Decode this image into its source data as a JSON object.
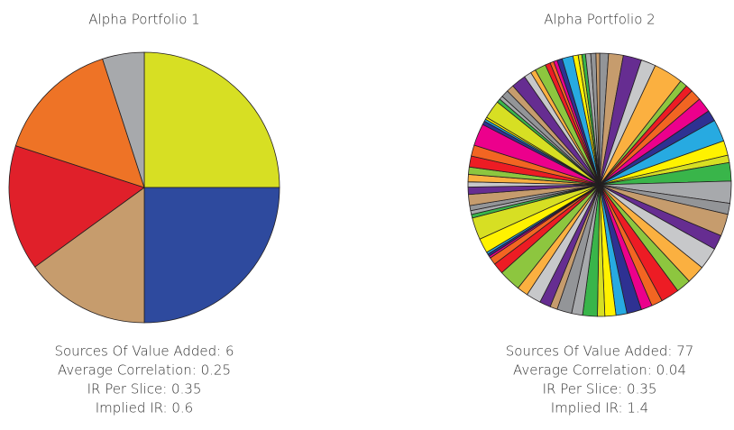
{
  "chart_data": [
    {
      "type": "pie",
      "title": "Alpha Portfolio 1",
      "values": [
        25,
        25,
        15,
        15,
        15,
        5
      ],
      "colors": [
        "#d7df23",
        "#2e4a9e",
        "#c69c6d",
        "#e0202a",
        "#ee7326",
        "#a7a9ac"
      ],
      "notes": [
        "Sources Of Value Added: 6",
        "Average Correlation: 0.25",
        "IR Per Slice: 0.35",
        "Implied IR: 0.6"
      ]
    },
    {
      "type": "pie",
      "title": "Alpha Portfolio 2",
      "values": [
        1.2,
        2,
        2.5,
        2,
        4,
        1,
        1,
        1.5,
        2,
        1.5,
        3,
        2,
        1,
        2.5,
        3,
        1.5,
        3,
        2,
        3,
        2.5,
        2,
        2.5,
        1.5,
        1.5,
        2,
        1.5,
        1.5,
        1,
        2,
        1.5,
        2,
        1,
        1.5,
        2,
        1.5,
        3,
        1.5,
        1,
        0.3,
        0.3,
        0.3,
        2,
        3,
        0.5,
        0.5,
        0.7,
        1.5,
        1,
        0.7,
        1,
        1,
        1.5,
        1.5,
        3,
        0.5,
        0.3,
        0.3,
        2.5,
        0.5,
        0.5,
        1,
        1,
        2,
        1,
        0.7,
        1.5,
        0.7,
        0.5,
        0.5,
        0.7,
        1.5,
        0.7,
        0.5,
        0.5,
        0.7,
        0.7,
        0.5
      ],
      "colors": [
        "#939598",
        "#c69c6d",
        "#662d91",
        "#c7c8ca",
        "#fbb040",
        "#8dc63f",
        "#ed1c24",
        "#f26522",
        "#ec008c",
        "#2e3192",
        "#27aae1",
        "#fff200",
        "#d7df23",
        "#39b54a",
        "#a7a9ac"
      ],
      "notes": [
        "Sources Of Value Added: 77",
        "Average Correlation: 0.04",
        "IR Per Slice: 0.35",
        "Implied IR: 1.4"
      ]
    }
  ]
}
